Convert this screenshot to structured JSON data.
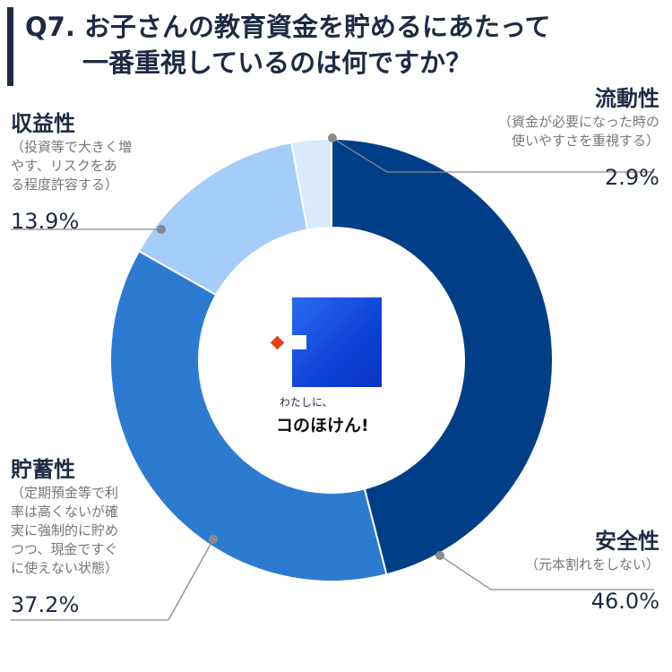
{
  "question": {
    "line1": "Q7. お子さんの教育資金を貯めるにあたって",
    "line2": "一番重視しているのは何ですか？"
  },
  "chart_data": {
    "type": "pie",
    "title": "Q7. お子さんの教育資金を貯めるにあたって一番重視しているのは何ですか？",
    "unit": "%",
    "slices": [
      {
        "label": "安全性",
        "note": "（元本割れをしない）",
        "value": 46.0,
        "value_label": "46.0%",
        "color": "#003f87"
      },
      {
        "label": "貯蓄性",
        "note": "（定期預金等で利\n率は高くないが確\n実に強制的に貯め\nつつ、現金ですぐ\nに使えない状態）",
        "value": 37.2,
        "value_label": "37.2%",
        "color": "#2c7bd1"
      },
      {
        "label": "収益性",
        "note": "（投資等で大きく増\nやす、リスクをあ\nる程度許容する）",
        "value": 13.9,
        "value_label": "13.9%",
        "color": "#a5cdfa"
      },
      {
        "label": "流動性",
        "note": "（資金が必要になった時の\n使いやすさを重視する）",
        "value": 2.9,
        "value_label": "2.9%",
        "color": "#d8eafc"
      }
    ]
  },
  "logo": {
    "small": "わたしに、",
    "main": "コのほけん!"
  }
}
